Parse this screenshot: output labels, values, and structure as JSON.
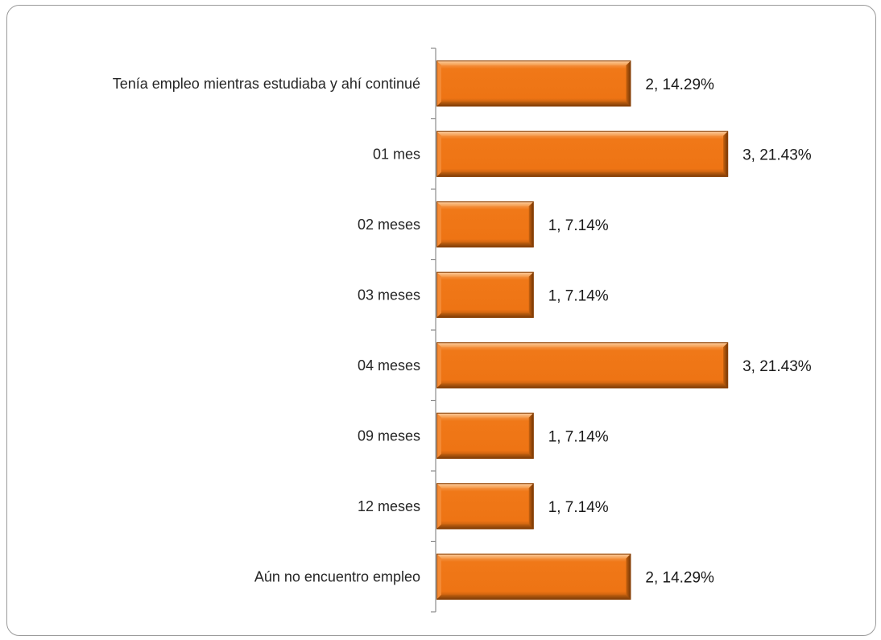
{
  "chart_data": {
    "type": "bar",
    "orientation": "horizontal",
    "title": "",
    "xlabel": "",
    "ylabel": "",
    "categories": [
      "Tenía empleo mientras estudiaba y ahí continué",
      "01 mes",
      "02 meses",
      "03 meses",
      "04 meses",
      "09 meses",
      "12 meses",
      "Aún no encuentro empleo"
    ],
    "values": [
      2,
      3,
      1,
      1,
      3,
      1,
      1,
      2
    ],
    "percentages": [
      "14.29%",
      "21.43%",
      "7.14%",
      "7.14%",
      "21.43%",
      "7.14%",
      "7.14%",
      "14.29%"
    ],
    "data_labels": [
      "2, 14.29%",
      "3, 21.43%",
      "1, 7.14%",
      "1, 7.14%",
      "3, 21.43%",
      "1, 7.14%",
      "1, 7.14%",
      "2, 14.29%"
    ],
    "xlim": [
      0,
      3
    ],
    "bar_color": "#f07818",
    "grid": false,
    "legend": "none"
  }
}
